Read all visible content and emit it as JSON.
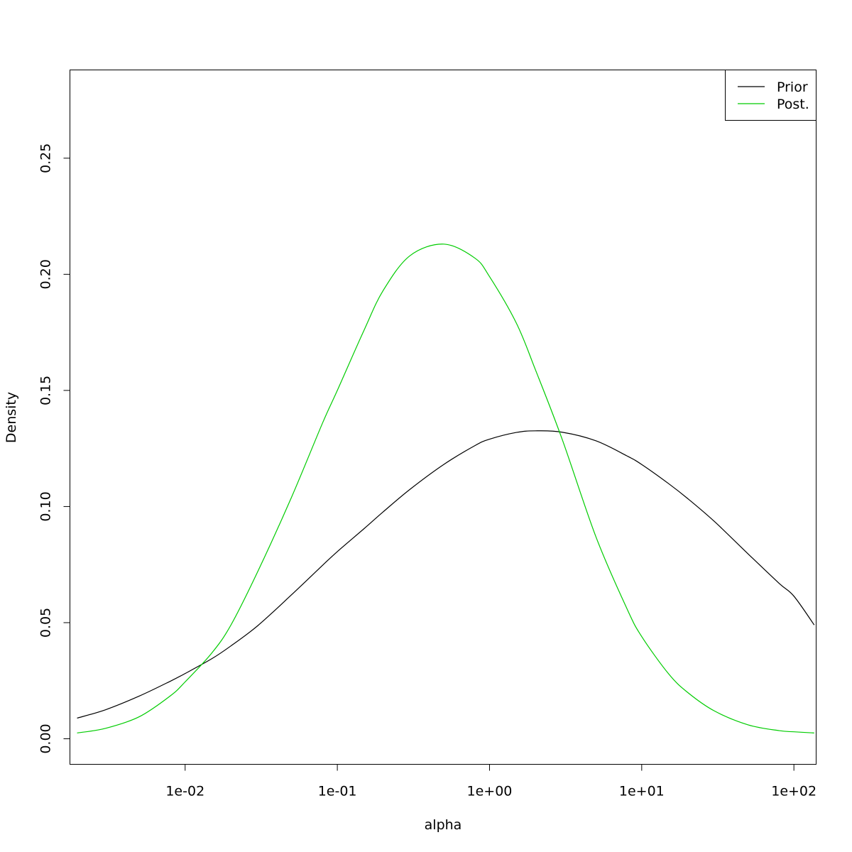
{
  "chart_data": {
    "type": "line",
    "xlabel": "alpha",
    "ylabel": "Density",
    "x_scale": "log10",
    "xlim": [
      0.00175,
      140
    ],
    "ylim": [
      -0.011,
      0.288
    ],
    "x_ticks": [
      0.01,
      0.1,
      1,
      10,
      100
    ],
    "x_tick_labels": [
      "1e-02",
      "1e-01",
      "1e+00",
      "1e+01",
      "1e+02"
    ],
    "y_ticks": [
      0,
      0.05,
      0.1,
      0.15,
      0.2,
      0.25
    ],
    "y_tick_labels": [
      "0.00",
      "0.05",
      "0.10",
      "0.15",
      "0.20",
      "0.25"
    ],
    "grid": false,
    "legend_position": "top-right",
    "series": [
      {
        "name": "Prior",
        "color": "#000000",
        "x": [
          0.00195,
          0.003,
          0.005,
          0.008,
          0.01,
          0.015,
          0.02,
          0.03,
          0.05,
          0.08,
          0.1,
          0.15,
          0.2,
          0.3,
          0.5,
          0.8,
          1,
          1.5,
          2,
          3,
          5,
          8,
          10,
          15,
          20,
          30,
          50,
          80,
          100,
          136
        ],
        "y": [
          0.0089,
          0.0125,
          0.0184,
          0.0248,
          0.0281,
          0.0345,
          0.04,
          0.0487,
          0.062,
          0.0747,
          0.0806,
          0.0905,
          0.0977,
          0.1074,
          0.1181,
          0.1262,
          0.129,
          0.1319,
          0.1326,
          0.132,
          0.1283,
          0.1218,
          0.1181,
          0.1099,
          0.1035,
          0.0936,
          0.0796,
          0.0669,
          0.0614,
          0.049
        ]
      },
      {
        "name": "Post.",
        "color": "#00cc00",
        "x": [
          0.00195,
          0.003,
          0.005,
          0.008,
          0.01,
          0.015,
          0.02,
          0.03,
          0.05,
          0.08,
          0.1,
          0.15,
          0.2,
          0.3,
          0.5,
          0.8,
          1,
          1.5,
          2,
          3,
          5,
          8,
          10,
          15,
          20,
          30,
          50,
          80,
          100,
          136
        ],
        "y": [
          0.0025,
          0.0045,
          0.0095,
          0.0185,
          0.0245,
          0.037,
          0.049,
          0.072,
          0.104,
          0.136,
          0.15,
          0.176,
          0.193,
          0.208,
          0.213,
          0.207,
          0.199,
          0.179,
          0.159,
          0.129,
          0.087,
          0.056,
          0.044,
          0.028,
          0.02,
          0.012,
          0.006,
          0.0035,
          0.003,
          0.0025
        ]
      }
    ]
  }
}
